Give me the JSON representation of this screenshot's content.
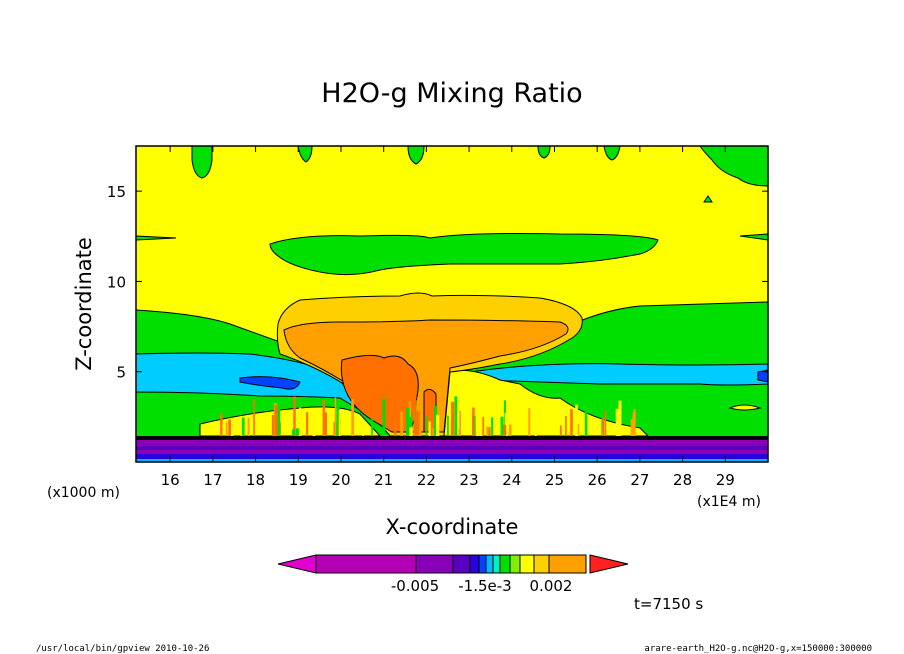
{
  "chart_data": {
    "type": "heatmap",
    "title": "H2O-g Mixing Ratio",
    "xlabel": "X-coordinate",
    "ylabel": "Z-coordinate",
    "x_unit_label": "(x1E4 m)",
    "y_unit_label": "(x1000 m)",
    "xlim": [
      15.2,
      30.0
    ],
    "ylim": [
      0,
      17.5
    ],
    "x_ticks": [
      "16",
      "17",
      "18",
      "19",
      "20",
      "21",
      "22",
      "23",
      "24",
      "25",
      "26",
      "27",
      "28",
      "29"
    ],
    "y_ticks": [
      "5",
      "10",
      "15"
    ],
    "colorbar": {
      "tick_labels": [
        "-0.005",
        "-1.5e-3",
        "0.002"
      ],
      "colors": [
        "#e000d0",
        "#b400b4",
        "#8800b8",
        "#5a00c0",
        "#2a00e0",
        "#0044ff",
        "#00b8ff",
        "#00f0c0",
        "#00e000",
        "#80f000",
        "#ffff00",
        "#ffd000",
        "#ffa000",
        "#ff7000",
        "#ff2020"
      ]
    },
    "time_label": "t=7150 s",
    "footer_left": "/usr/local/bin/gpview  2010-10-26",
    "footer_right": "arare-earth_H2O-g.nc@H2O-g,x=150000:300000",
    "colors": {
      "yellow": "#ffff00",
      "green": "#00e000",
      "cyan": "#00ccff",
      "blue": "#0044ff",
      "orange_light": "#ffd000",
      "orange_mid": "#ffa000",
      "orange_dark": "#ff7000",
      "purple": "#8800b8"
    }
  }
}
